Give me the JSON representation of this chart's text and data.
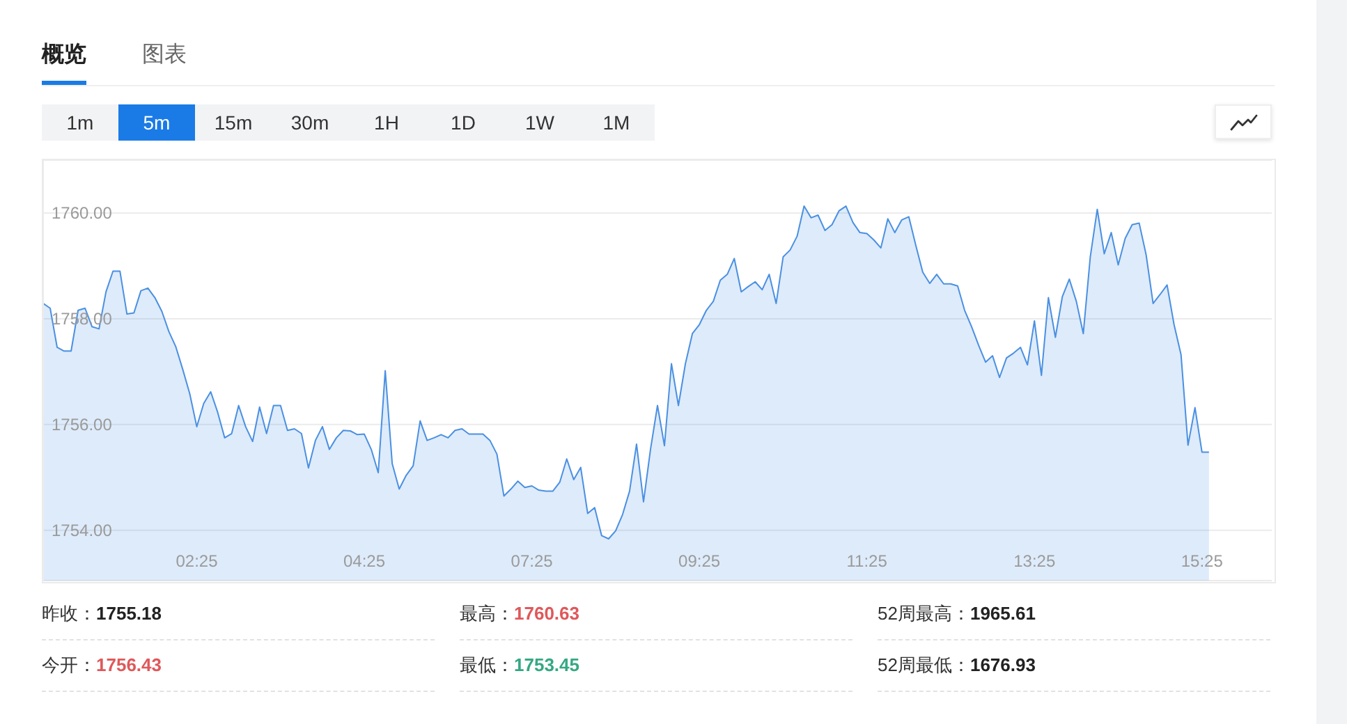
{
  "chart_data": {
    "type": "area",
    "color": "#4a90e2",
    "categories": [
      null,
      null,
      null,
      null,
      null,
      null,
      null,
      null,
      null,
      null,
      null,
      null,
      null,
      null,
      null,
      null,
      null,
      null,
      null,
      null,
      null,
      null,
      "02:25",
      null,
      null,
      null,
      null,
      null,
      null,
      null,
      null,
      null,
      null,
      null,
      null,
      null,
      null,
      null,
      null,
      null,
      null,
      null,
      null,
      null,
      null,
      null,
      "04:25",
      null,
      null,
      null,
      null,
      null,
      null,
      null,
      null,
      null,
      null,
      null,
      null,
      null,
      null,
      null,
      null,
      null,
      null,
      null,
      null,
      null,
      null,
      null,
      "07:25",
      null,
      null,
      null,
      null,
      null,
      null,
      null,
      null,
      null,
      null,
      null,
      null,
      null,
      null,
      null,
      null,
      null,
      null,
      null,
      null,
      null,
      null,
      null,
      "09:25",
      null,
      null,
      null,
      null,
      null,
      null,
      null,
      null,
      null,
      null,
      null,
      null,
      null,
      null,
      null,
      null,
      null,
      null,
      null,
      null,
      null,
      null,
      null,
      "11:25",
      null,
      null,
      null,
      null,
      null,
      null,
      null,
      null,
      null,
      null,
      null,
      null,
      null,
      null,
      null,
      null,
      null,
      null,
      null,
      null,
      null,
      null,
      null,
      "13:25",
      null,
      null,
      null,
      null,
      null,
      null,
      null,
      null,
      null,
      null,
      null,
      null,
      null,
      null,
      null,
      null,
      null,
      null,
      null,
      null,
      null,
      null,
      null,
      "15:25",
      null,
      null,
      null,
      null,
      null,
      null,
      null,
      null,
      null,
      null
    ],
    "values": [
      1758.29,
      1758.2,
      1757.46,
      1757.39,
      1757.39,
      1758.16,
      1758.2,
      1757.85,
      1757.81,
      1758.51,
      1758.9,
      1758.9,
      1758.09,
      1758.11,
      1758.53,
      1758.58,
      1758.4,
      1758.14,
      1757.76,
      1757.47,
      1757.04,
      1756.58,
      1755.96,
      1756.4,
      1756.62,
      1756.23,
      1755.75,
      1755.83,
      1756.36,
      1755.96,
      1755.68,
      1756.33,
      1755.83,
      1756.36,
      1756.36,
      1755.89,
      1755.92,
      1755.83,
      1755.18,
      1755.7,
      1755.96,
      1755.53,
      1755.75,
      1755.89,
      1755.88,
      1755.81,
      1755.82,
      1755.53,
      1755.09,
      1757.02,
      1755.26,
      1754.78,
      1755.04,
      1755.22,
      1756.07,
      1755.7,
      1755.75,
      1755.81,
      1755.75,
      1755.89,
      1755.92,
      1755.82,
      1755.82,
      1755.82,
      1755.7,
      1755.44,
      1754.65,
      1754.78,
      1754.93,
      1754.81,
      1754.84,
      1754.76,
      1754.74,
      1754.74,
      1754.91,
      1755.35,
      1754.96,
      1755.19,
      1754.32,
      1754.43,
      1753.9,
      1753.84,
      1753.99,
      1754.3,
      1754.74,
      1755.63,
      1754.54,
      1755.53,
      1756.36,
      1755.6,
      1757.15,
      1756.36,
      1757.15,
      1757.72,
      1757.89,
      1758.16,
      1758.33,
      1758.73,
      1758.84,
      1759.14,
      1758.51,
      1758.61,
      1758.7,
      1758.55,
      1758.84,
      1758.29,
      1759.17,
      1759.3,
      1759.56,
      1760.13,
      1759.91,
      1759.96,
      1759.67,
      1759.78,
      1760.04,
      1760.13,
      1759.82,
      1759.63,
      1759.61,
      1759.49,
      1759.34,
      1759.89,
      1759.63,
      1759.87,
      1759.93,
      1759.39,
      1758.88,
      1758.67,
      1758.84,
      1758.66,
      1758.66,
      1758.62,
      1758.16,
      1757.85,
      1757.5,
      1757.18,
      1757.3,
      1756.89,
      1757.26,
      1757.35,
      1757.46,
      1757.13,
      1757.96,
      1756.93,
      1758.4,
      1757.65,
      1758.42,
      1758.75,
      1758.33,
      1757.72,
      1759.17,
      1760.07,
      1759.23,
      1759.63,
      1759.02,
      1759.52,
      1759.78,
      1759.81,
      1759.21,
      1758.29,
      1758.46,
      1758.64,
      1757.89,
      1757.32,
      1755.61,
      1756.32,
      1755.48,
      1755.48,
      null,
      null,
      null,
      null,
      null,
      null,
      null,
      null,
      null
    ],
    "ylim": [
      1753.05,
      1761.0
    ],
    "yticks": [
      {
        "value": 1754,
        "label": "1754.00"
      },
      {
        "value": 1756,
        "label": "1756.00"
      },
      {
        "value": 1758,
        "label": "1758.00"
      },
      {
        "value": 1760,
        "label": "1760.00"
      }
    ],
    "grid": "y",
    "annotations": [
      "概览",
      "图表",
      "1m",
      "5m",
      "15m",
      "30m",
      "1H",
      "1D",
      "1W",
      "1M",
      "昨收：",
      "1755.18",
      "最高：",
      "1760.63",
      "52周最高：",
      "1965.61",
      "今开：",
      "1756.43",
      "最低：",
      "1753.45",
      "52周最低：",
      "1676.93"
    ]
  }
}
